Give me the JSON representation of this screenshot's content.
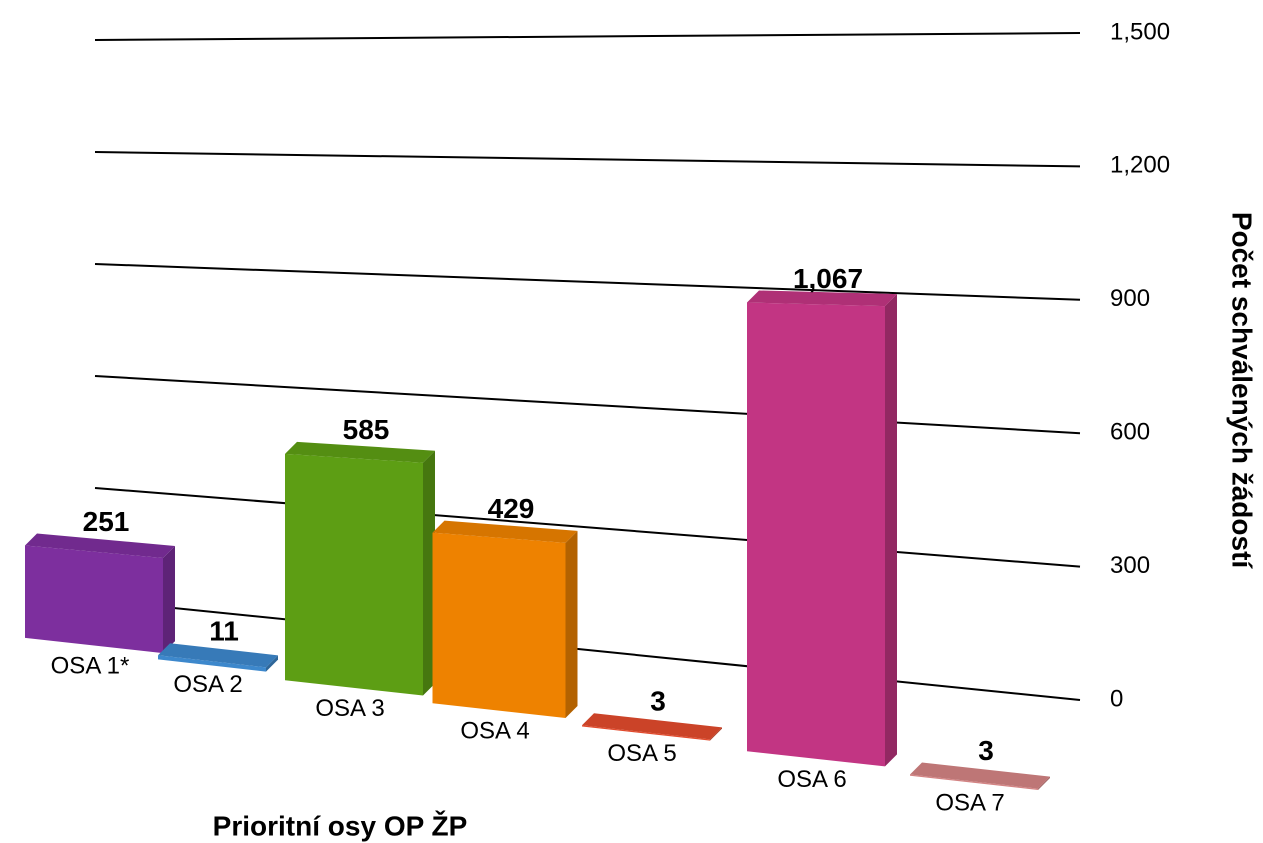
{
  "chart_data": {
    "type": "bar3d",
    "categories": [
      "OSA 1*",
      "OSA 2",
      "OSA 3",
      "OSA 4",
      "OSA 5",
      "OSA 6",
      "OSA 7"
    ],
    "values": [
      251,
      11,
      585,
      429,
      3,
      1067,
      3
    ],
    "value_labels": [
      "251",
      "11",
      "585",
      "429",
      "3",
      "1,067",
      "3"
    ],
    "colors": [
      "#7d2f9e",
      "#3d88cc",
      "#5d9e14",
      "#ee8200",
      "#e24a2c",
      "#c23583",
      "#d38383"
    ],
    "ylim": [
      0,
      1500
    ],
    "yticks": [
      0,
      300,
      600,
      900,
      {
        "value": 1200,
        "label": "1,200"
      },
      {
        "value": 1500,
        "label": "1,500"
      }
    ],
    "y_axis_label": "Počet schválených žádostí",
    "x_axis_label": "Prioritní osy OP ŽP",
    "y_axis_side": "right",
    "grid": true
  }
}
